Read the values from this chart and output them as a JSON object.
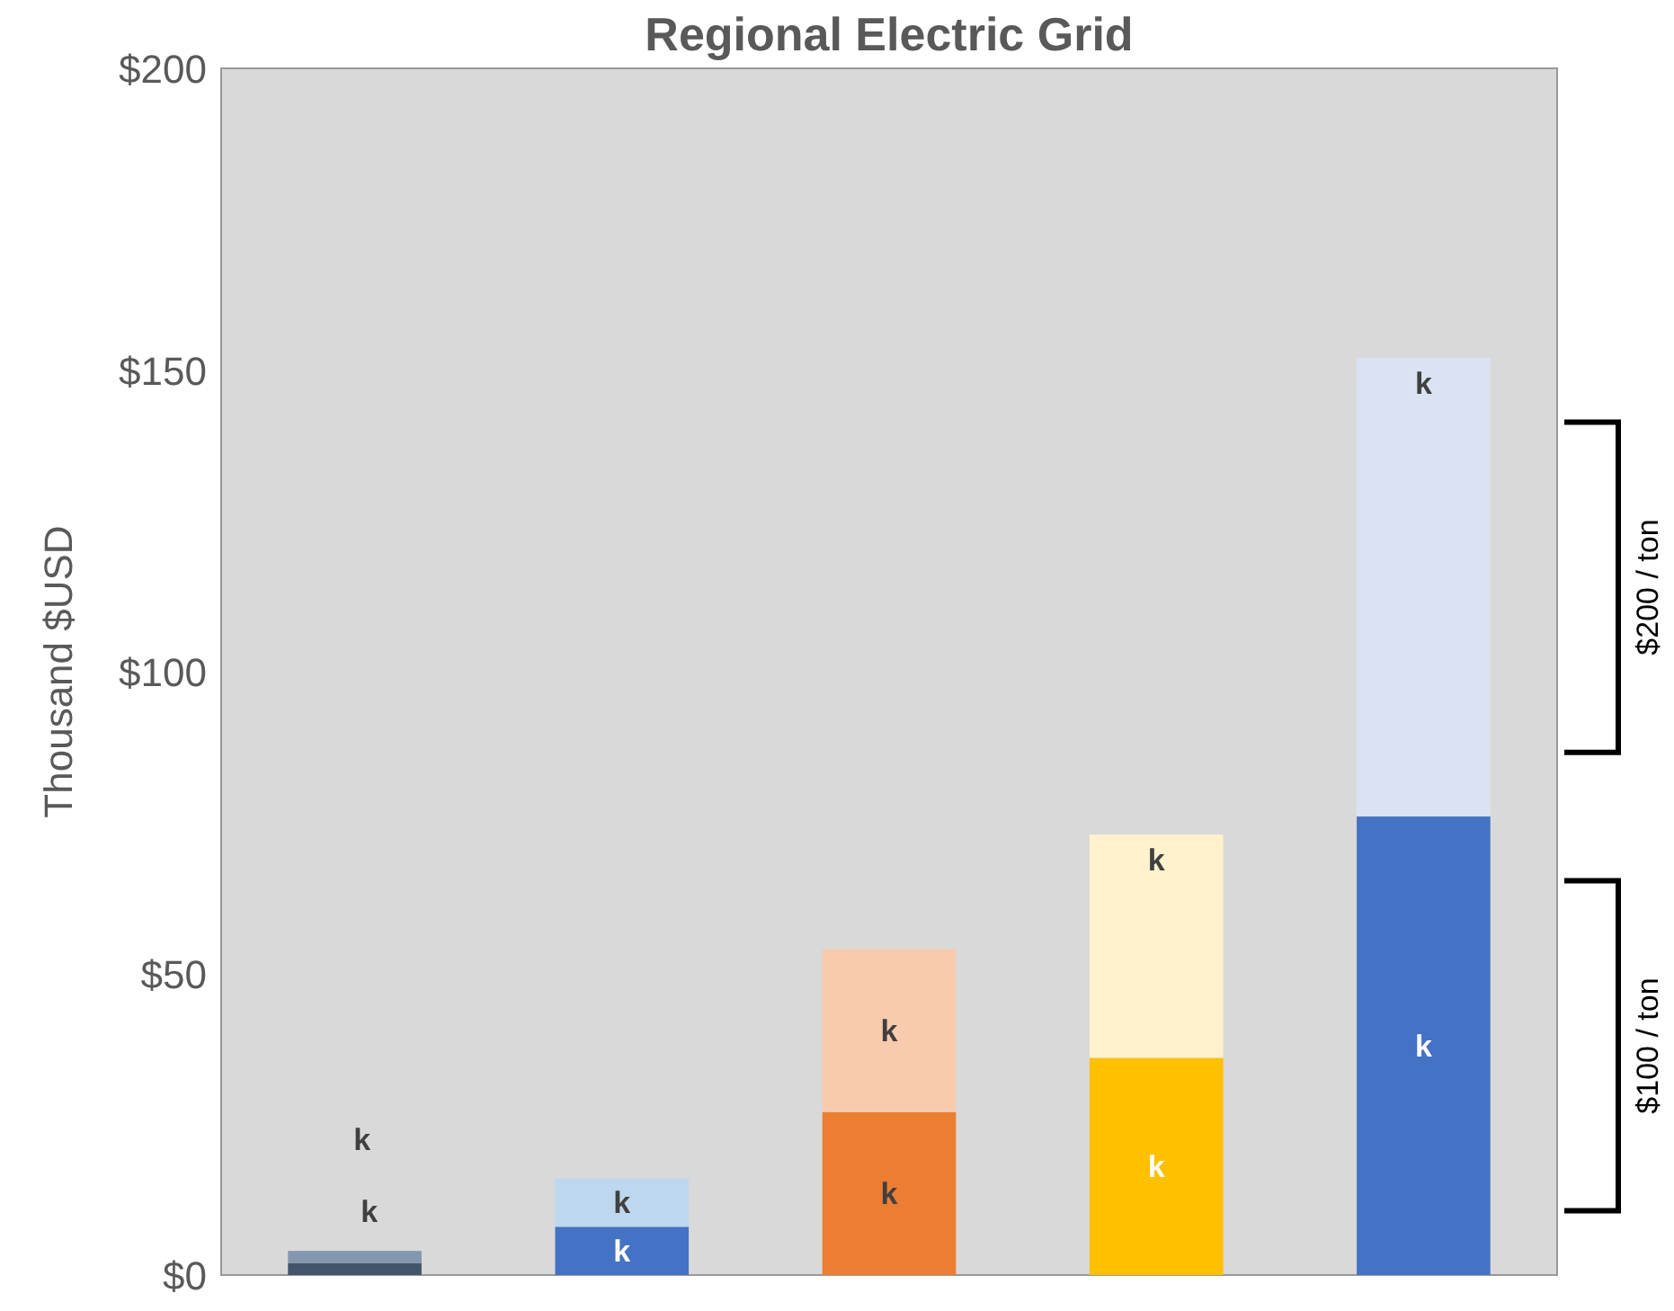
{
  "chart_data": {
    "type": "bar",
    "title": "Regional Electric Grid",
    "ylabel": "Thousand $USD",
    "stacked": true,
    "categories": [
      null,
      null,
      null,
      null,
      null
    ],
    "series": [
      {
        "colors": [
          "#44546a",
          "#4472c4",
          "#ed7d31",
          "#ffc000",
          "#4472c4"
        ],
        "values": [
          2,
          8,
          27,
          36,
          76
        ],
        "value_labels": [
          "k",
          "k",
          "k",
          "k",
          "k"
        ]
      },
      {
        "colors": [
          "#8497b0",
          "#bdd7ee",
          "#f8cbad",
          "#fff2cc",
          "#dae3f3"
        ],
        "values": [
          2,
          8,
          27,
          37,
          76
        ],
        "value_labels": [
          "k",
          "k",
          "k",
          "k",
          "k"
        ]
      }
    ],
    "ylim": [
      0,
      200
    ],
    "yticks": [
      {
        "value": 0,
        "label": "$0"
      },
      {
        "value": 50,
        "label": "$50"
      },
      {
        "value": 100,
        "label": "$100"
      },
      {
        "value": 150,
        "label": "$150"
      },
      {
        "value": 200,
        "label": "$200"
      }
    ],
    "annotations": [
      "$200 / ton",
      "$100 / ton"
    ],
    "grid": false
  }
}
